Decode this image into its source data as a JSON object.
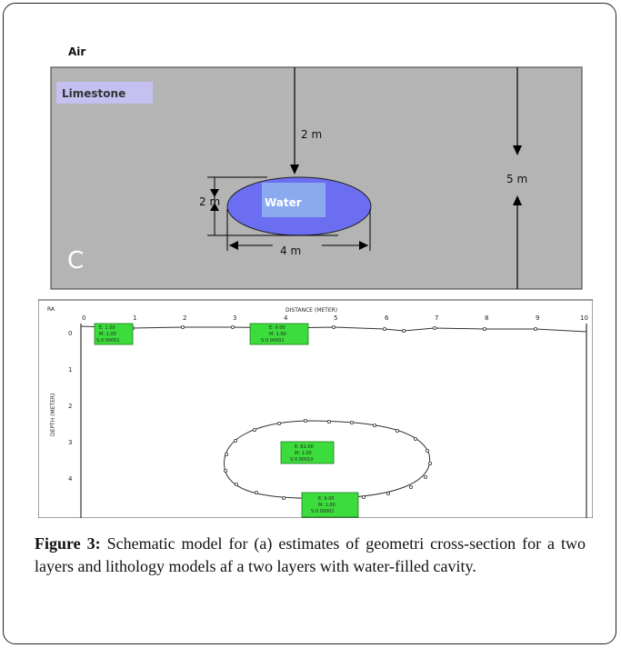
{
  "figure": {
    "model_panel": {
      "air_label": "Air",
      "limestone_label": "Limestone",
      "water_label": "Water",
      "panel_letter": "C",
      "dim_top": "2 m",
      "dim_height": "2 m",
      "dim_width": "4 m",
      "dim_total": "5 m"
    },
    "section_panel": {
      "axis_title": "DISTANCE (METER)",
      "y_axis_title": "DEPTH (METER)",
      "corner_label": "RA",
      "x_ticks": [
        "0",
        "1",
        "2",
        "3",
        "4",
        "5",
        "6",
        "7",
        "8",
        "9",
        "10"
      ],
      "y_ticks": [
        "0",
        "1",
        "2",
        "3",
        "4"
      ],
      "boxes": [
        {
          "lines": [
            "E: 1.00",
            "M: 1.00",
            "S:0.00001"
          ]
        },
        {
          "lines": [
            "E: 9.00",
            "M: 1.00",
            "S:0.00001"
          ]
        },
        {
          "lines": [
            "E: 81.00",
            "M: 1.00",
            "S:0.00010"
          ]
        },
        {
          "lines": [
            "E: 9.00",
            "M: 1.00",
            "S:0.00001"
          ]
        }
      ]
    }
  },
  "caption": {
    "label": "Figure 3:",
    "text": " Schematic model for (a) estimates of geometri cross-section for a two layers and lithology models af a two layers with water-filled cavity."
  },
  "colors": {
    "limestone": "#b4b4b4",
    "water": "#6b6ef0",
    "water_highlight": "#8fb4ee",
    "box_green": "#3ddc3d",
    "limestone_tag": "#c4c0f0"
  }
}
